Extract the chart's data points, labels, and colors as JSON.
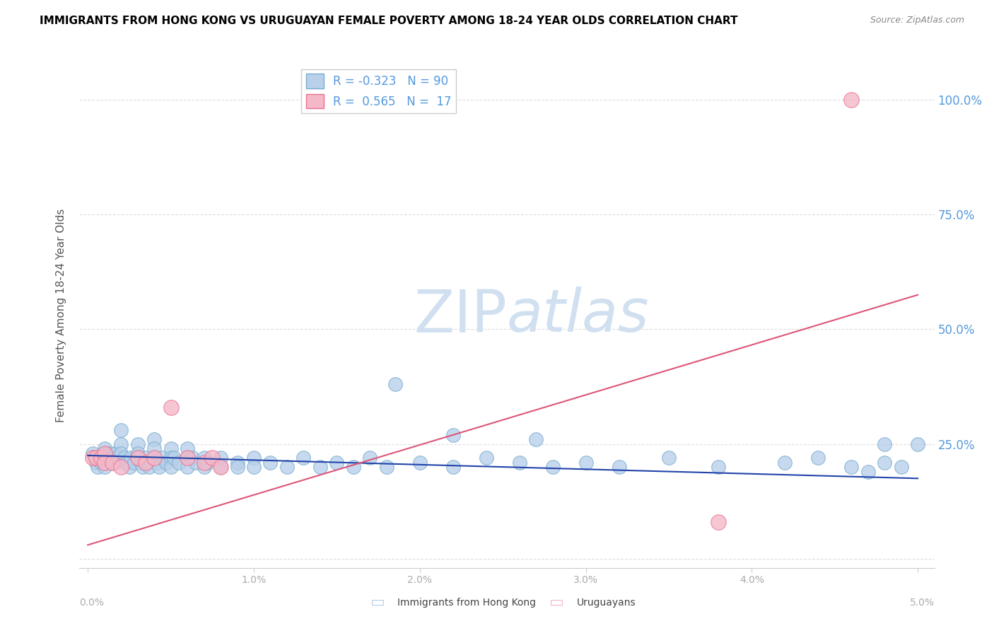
{
  "title": "IMMIGRANTS FROM HONG KONG VS URUGUAYAN FEMALE POVERTY AMONG 18-24 YEAR OLDS CORRELATION CHART",
  "source": "Source: ZipAtlas.com",
  "ylabel": "Female Poverty Among 18-24 Year Olds",
  "ytick_labels": [
    "",
    "25.0%",
    "50.0%",
    "75.0%",
    "100.0%"
  ],
  "ytick_values": [
    0,
    0.25,
    0.5,
    0.75,
    1.0
  ],
  "xlim": [
    -0.0005,
    0.051
  ],
  "ylim": [
    -0.02,
    1.08
  ],
  "blue_R": -0.323,
  "blue_N": 90,
  "pink_R": 0.565,
  "pink_N": 17,
  "blue_color": "#b8d0ea",
  "blue_edge": "#7aadce",
  "pink_color": "#f5b8c8",
  "pink_edge": "#e87090",
  "blue_line_color": "#2244aa",
  "pink_line_color": "#dd5577",
  "watermark_color": "#d0e0f0",
  "legend_label_blue": "Immigrants from Hong Kong",
  "legend_label_pink": "Uruguayans",
  "blue_trend_x": [
    0.0,
    0.05
  ],
  "blue_trend_y": [
    0.225,
    0.175
  ],
  "pink_trend_x": [
    0.0,
    0.05
  ],
  "pink_trend_y": [
    0.03,
    0.575
  ],
  "blue_scatter_x": [
    0.0003,
    0.0004,
    0.0005,
    0.0006,
    0.0007,
    0.0008,
    0.0009,
    0.001,
    0.001,
    0.001,
    0.001,
    0.001,
    0.0012,
    0.0013,
    0.0014,
    0.0015,
    0.0015,
    0.0016,
    0.0017,
    0.0018,
    0.002,
    0.002,
    0.002,
    0.0022,
    0.0023,
    0.0025,
    0.0026,
    0.0028,
    0.003,
    0.003,
    0.003,
    0.0032,
    0.0033,
    0.0035,
    0.0036,
    0.0037,
    0.004,
    0.004,
    0.004,
    0.0042,
    0.0043,
    0.0045,
    0.0047,
    0.005,
    0.005,
    0.005,
    0.0052,
    0.0055,
    0.006,
    0.006,
    0.006,
    0.0063,
    0.0065,
    0.007,
    0.007,
    0.0072,
    0.008,
    0.008,
    0.009,
    0.009,
    0.01,
    0.01,
    0.011,
    0.012,
    0.013,
    0.014,
    0.015,
    0.016,
    0.017,
    0.018,
    0.02,
    0.022,
    0.024,
    0.026,
    0.028,
    0.03,
    0.032,
    0.035,
    0.038,
    0.042,
    0.044,
    0.046,
    0.047,
    0.048,
    0.049,
    0.05,
    0.0185,
    0.022,
    0.027,
    0.048
  ],
  "blue_scatter_y": [
    0.23,
    0.22,
    0.21,
    0.2,
    0.22,
    0.21,
    0.22,
    0.24,
    0.23,
    0.22,
    0.21,
    0.2,
    0.23,
    0.22,
    0.21,
    0.23,
    0.22,
    0.21,
    0.23,
    0.22,
    0.28,
    0.25,
    0.23,
    0.22,
    0.21,
    0.2,
    0.22,
    0.21,
    0.25,
    0.23,
    0.22,
    0.21,
    0.2,
    0.22,
    0.21,
    0.2,
    0.26,
    0.24,
    0.22,
    0.21,
    0.2,
    0.22,
    0.21,
    0.24,
    0.22,
    0.2,
    0.22,
    0.21,
    0.24,
    0.22,
    0.2,
    0.22,
    0.21,
    0.22,
    0.2,
    0.21,
    0.22,
    0.2,
    0.21,
    0.2,
    0.22,
    0.2,
    0.21,
    0.2,
    0.22,
    0.2,
    0.21,
    0.2,
    0.22,
    0.2,
    0.21,
    0.2,
    0.22,
    0.21,
    0.2,
    0.21,
    0.2,
    0.22,
    0.2,
    0.21,
    0.22,
    0.2,
    0.19,
    0.21,
    0.2,
    0.25,
    0.38,
    0.27,
    0.26,
    0.25
  ],
  "pink_scatter_x": [
    0.0003,
    0.0005,
    0.0008,
    0.001,
    0.001,
    0.0015,
    0.002,
    0.003,
    0.0035,
    0.004,
    0.005,
    0.006,
    0.007,
    0.0075,
    0.008,
    0.038,
    0.046
  ],
  "pink_scatter_y": [
    0.22,
    0.22,
    0.22,
    0.23,
    0.21,
    0.21,
    0.2,
    0.22,
    0.21,
    0.22,
    0.33,
    0.22,
    0.21,
    0.22,
    0.2,
    0.08,
    1.0
  ]
}
